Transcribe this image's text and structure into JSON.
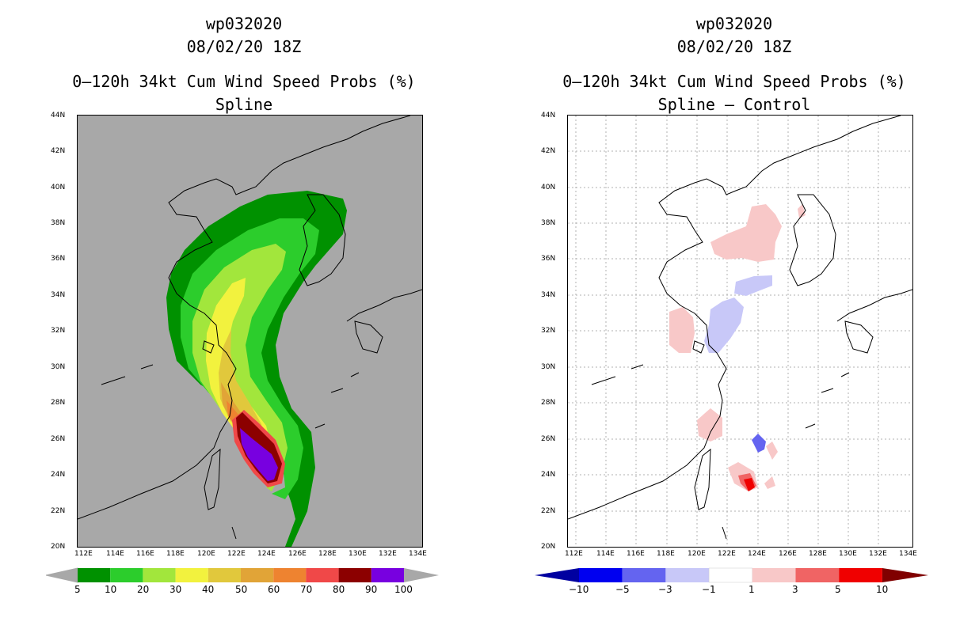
{
  "panels": [
    {
      "title_lines": [
        "wp032020",
        "08/02/20 18Z",
        "0–120h 34kt Cum Wind Speed Probs (%)",
        "Spline"
      ],
      "background": "#a8a8a8",
      "lat_labels": [
        "44N",
        "42N",
        "40N",
        "38N",
        "36N",
        "34N",
        "32N",
        "30N",
        "28N",
        "26N",
        "24N",
        "22N",
        "20N"
      ],
      "lon_labels": [
        "112E",
        "114E",
        "116E",
        "118E",
        "120E",
        "122E",
        "124E",
        "126E",
        "128E",
        "130E",
        "132E",
        "134E"
      ],
      "colorbar": {
        "labels": [
          "5",
          "10",
          "20",
          "30",
          "40",
          "50",
          "60",
          "70",
          "80",
          "90",
          "100"
        ],
        "colors": [
          "#009100",
          "#2ccd2c",
          "#a2e63c",
          "#f2f23e",
          "#e1c83c",
          "#e1a437",
          "#ee8330",
          "#f04848",
          "#8c0000",
          "#7800e0"
        ]
      }
    },
    {
      "title_lines": [
        "wp032020",
        "08/02/20 18Z",
        "0–120h 34kt Cum Wind Speed Probs (%)",
        "Spline – Control"
      ],
      "background": "#ffffff",
      "lat_labels": [
        "44N",
        "42N",
        "40N",
        "38N",
        "36N",
        "34N",
        "32N",
        "30N",
        "28N",
        "26N",
        "24N",
        "22N",
        "20N"
      ],
      "lon_labels": [
        "112E",
        "114E",
        "116E",
        "118E",
        "120E",
        "122E",
        "124E",
        "126E",
        "128E",
        "130E",
        "132E",
        "134E"
      ],
      "colorbar": {
        "labels": [
          "−10",
          "−5",
          "−3",
          "−1",
          "1",
          "3",
          "5",
          "10"
        ],
        "colors": [
          "#0000a0",
          "#0000f0",
          "#6464f0",
          "#c8c8f8",
          "#ffffff",
          "#f8c8c8",
          "#f06464",
          "#f00000",
          "#800000"
        ]
      }
    }
  ]
}
